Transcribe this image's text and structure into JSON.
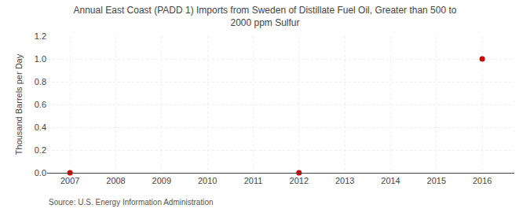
{
  "chart_data": {
    "type": "scatter",
    "title": "Annual East Coast (PADD 1) Imports from Sweden of Distillate Fuel Oil, Greater than 500 to\n2000 ppm Sulfur",
    "ylabel": "Thousand Barrels per Day",
    "annotations": [
      "Source: U.S. Energy Information Administration"
    ],
    "x": [
      2007,
      2012,
      2016
    ],
    "values": [
      0.0,
      0.0,
      1.0
    ],
    "color": "#cc0000",
    "xlim": [
      2006.5,
      2016.7
    ],
    "ylim": [
      0.0,
      1.2
    ],
    "xticks": [
      2007,
      2008,
      2009,
      2010,
      2011,
      2012,
      2013,
      2014,
      2015,
      2016
    ],
    "yticks": [
      {
        "value": 0.0,
        "label": "0.0"
      },
      0.2,
      0.4,
      0.6,
      0.8,
      {
        "value": 1.0,
        "label": "1.0"
      },
      1.2
    ],
    "grid": true
  }
}
